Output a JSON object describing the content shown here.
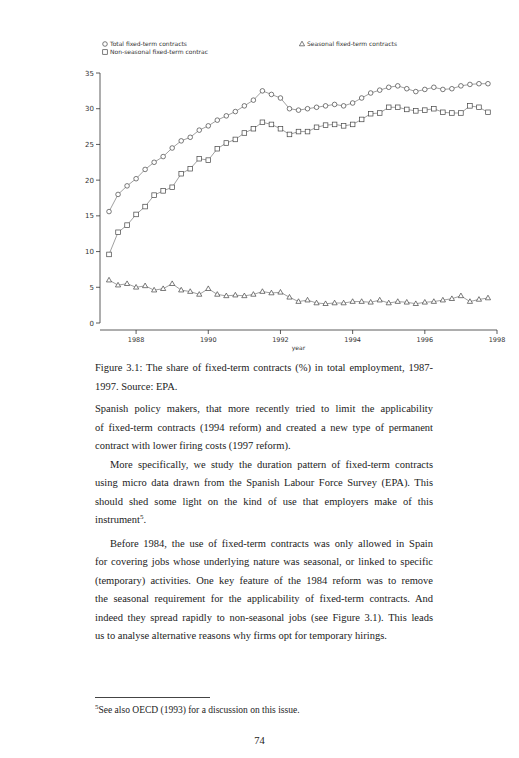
{
  "chart_data": {
    "type": "line",
    "x_label": "year",
    "x": [
      1987.25,
      1987.5,
      1987.75,
      1988,
      1988.25,
      1988.5,
      1988.75,
      1989,
      1989.25,
      1989.5,
      1989.75,
      1990,
      1990.25,
      1990.5,
      1990.75,
      1991,
      1991.25,
      1991.5,
      1991.75,
      1992,
      1992.25,
      1992.5,
      1992.75,
      1993,
      1993.25,
      1993.5,
      1993.75,
      1994,
      1994.25,
      1994.5,
      1994.75,
      1995,
      1995.25,
      1995.5,
      1995.75,
      1996,
      1996.25,
      1996.5,
      1996.75,
      1997,
      1997.25,
      1997.5,
      1997.75
    ],
    "series": [
      {
        "name": "Total fixed-term contracts",
        "color": "#444444",
        "marker": "circle",
        "values": [
          15.6,
          18.0,
          19.2,
          20.2,
          21.5,
          22.5,
          23.3,
          24.5,
          25.5,
          26.0,
          27.0,
          27.6,
          28.4,
          29.0,
          29.6,
          30.4,
          31.2,
          32.5,
          32.0,
          31.5,
          30.0,
          29.8,
          30.0,
          30.2,
          30.4,
          30.6,
          30.4,
          30.8,
          31.5,
          32.2,
          32.6,
          33.0,
          33.2,
          32.8,
          32.4,
          32.7,
          33.0,
          32.7,
          32.8,
          33.2,
          33.4,
          33.5,
          33.5
        ]
      },
      {
        "name": "Seasonal fixed-term contracts",
        "color": "#444444",
        "marker": "triangle",
        "values": [
          6.0,
          5.3,
          5.5,
          5.0,
          5.2,
          4.6,
          4.8,
          5.5,
          4.6,
          4.4,
          4.0,
          4.8,
          4.0,
          3.8,
          3.9,
          3.8,
          4.0,
          4.4,
          4.2,
          4.3,
          3.6,
          3.0,
          3.2,
          2.8,
          2.7,
          2.8,
          2.8,
          3.0,
          3.0,
          2.9,
          3.2,
          2.8,
          3.0,
          2.9,
          2.7,
          2.9,
          3.0,
          3.2,
          3.4,
          3.8,
          3.0,
          3.3,
          3.5
        ]
      },
      {
        "name": "Non-seasonal fixed-term contrac",
        "color": "#444444",
        "marker": "square",
        "values": [
          9.6,
          12.7,
          13.7,
          15.2,
          16.3,
          17.9,
          18.5,
          19.0,
          20.9,
          21.6,
          23.0,
          22.8,
          24.4,
          25.2,
          25.7,
          26.6,
          27.2,
          28.1,
          27.8,
          27.2,
          26.4,
          26.8,
          26.8,
          27.4,
          27.7,
          27.8,
          27.6,
          27.8,
          28.5,
          29.3,
          29.4,
          30.2,
          30.2,
          29.9,
          29.7,
          29.8,
          30.0,
          29.5,
          29.4,
          29.4,
          30.4,
          30.2,
          29.5
        ]
      }
    ],
    "xlim": [
      1987,
      1998
    ],
    "xticks": [
      1988,
      1990,
      1992,
      1994,
      1996,
      1998
    ],
    "ylim": [
      0,
      35
    ],
    "yticks": [
      0,
      5,
      10,
      15,
      20,
      25,
      30,
      35
    ],
    "grid": false,
    "legend": "top"
  },
  "caption": [
    "Figure 3.1: The share of fixed-term contracts (%) in total employment, 1987-",
    "1997. Source: EPA."
  ],
  "paragraphs": [
    {
      "lines": [
        "Spanish policy makers, that more recently tried to limit the applicability",
        "of fixed-term contracts (1994 reform) and created a new type of permanent",
        "contract with lower firing costs (1997 reform)."
      ]
    },
    {
      "lines": [
        "More specifically, we study the duration pattern of fixed-term contracts",
        "using micro data drawn from the Spanish Labour Force Survey (EPA). This",
        "should shed some light on the kind of use that employers make of this",
        [
          "instrument",
          {
            "sup": "5"
          },
          "."
        ]
      ]
    },
    {
      "lines": [
        "Before 1984, the use of fixed-term contracts was only allowed in Spain",
        "for covering jobs whose underlying nature was seasonal, or linked to specific",
        "(temporary) activities. One key feature of the 1984 reform was to remove",
        "the seasonal requirement for the applicability of fixed-term contracts. And",
        "indeed they spread rapidly to non-seasonal jobs (see Figure 3.1). This leads",
        "us to analyse alternative reasons why firms opt for temporary hirings."
      ]
    }
  ],
  "footnote": {
    "mark": "5",
    "text": "See also OECD (1993) for a discussion on this issue."
  },
  "page_number": 74
}
